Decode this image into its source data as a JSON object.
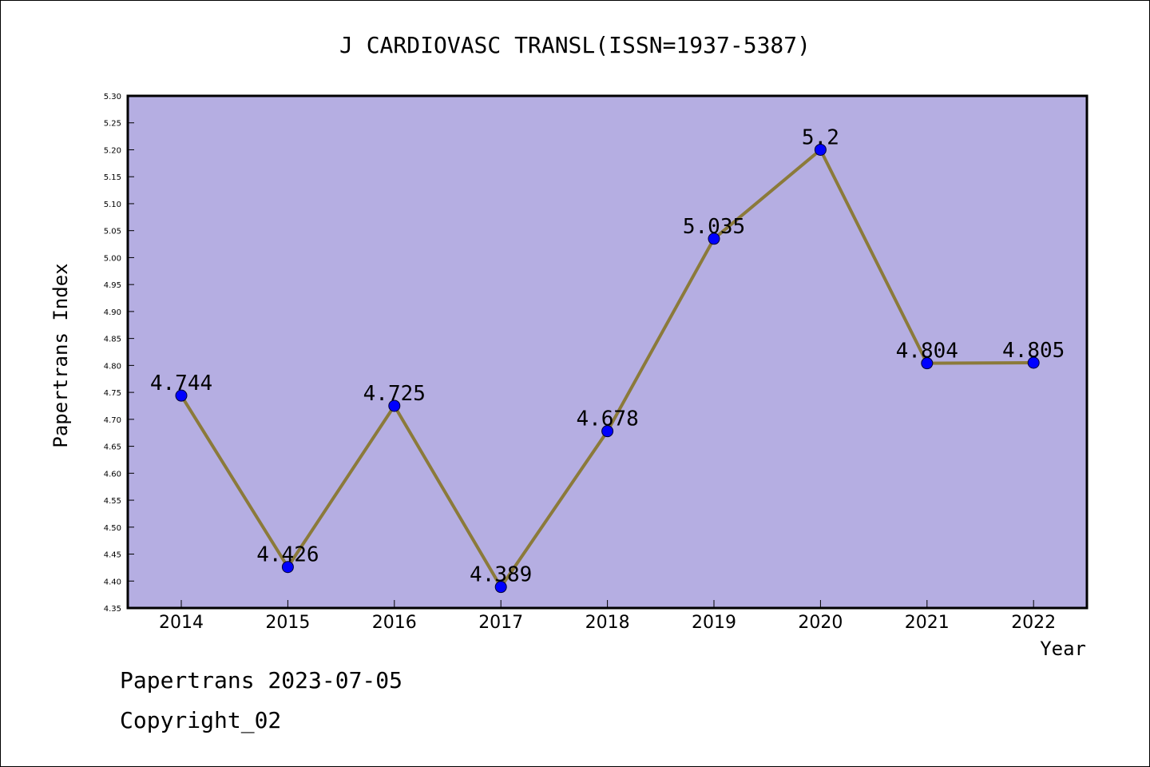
{
  "chart_data": {
    "type": "line",
    "title": "J CARDIOVASC TRANSL(ISSN=1937-5387)",
    "xlabel": "Year",
    "ylabel": "Papertrans Index",
    "categories": [
      "2014",
      "2015",
      "2016",
      "2017",
      "2018",
      "2019",
      "2020",
      "2021",
      "2022"
    ],
    "values": [
      4.744,
      4.426,
      4.725,
      4.389,
      4.678,
      5.035,
      5.2,
      4.804,
      4.805
    ],
    "data_labels": [
      "4.744",
      "4.426",
      "4.725",
      "4.389",
      "4.678",
      "5.035",
      "5.2",
      "4.804",
      "4.805"
    ],
    "ylim": [
      4.35,
      5.3
    ],
    "yticks": [
      "4.35",
      "4.40",
      "4.45",
      "4.50",
      "4.55",
      "4.60",
      "4.65",
      "4.70",
      "4.75",
      "4.80",
      "4.85",
      "4.90",
      "4.95",
      "5.00",
      "5.05",
      "5.10",
      "5.15",
      "5.20",
      "5.25",
      "5.30"
    ],
    "grid": false,
    "colors": {
      "plot_background": "#b5aee2",
      "line": "#8b7a3a",
      "marker": "#0000ff"
    }
  },
  "footer": {
    "line1": "Papertrans 2023-07-05",
    "line2": "Copyright_02"
  }
}
